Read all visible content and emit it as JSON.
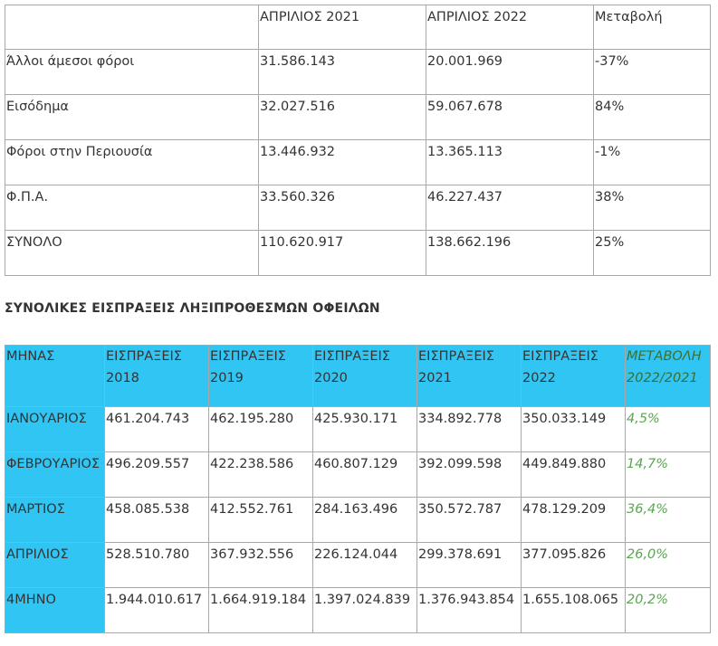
{
  "table1": {
    "headers": [
      "",
      "ΑΠΡΙΛΙΟΣ 2021",
      "ΑΠΡΙΛΙΟΣ 2022",
      "Μεταβολή"
    ],
    "rows": [
      [
        "Άλλοι άμεσοι φόροι",
        "31.586.143",
        "20.001.969",
        "-37%"
      ],
      [
        "Εισόδημα",
        "32.027.516",
        "59.067.678",
        "84%"
      ],
      [
        "Φόροι στην Περιουσία",
        "13.446.932",
        "13.365.113",
        "-1%"
      ],
      [
        "Φ.Π.Α.",
        "33.560.326",
        "46.227.437",
        "38%"
      ],
      [
        "ΣΥΝΟΛΟ",
        "110.620.917",
        "138.662.196",
        "25%"
      ]
    ]
  },
  "heading": "ΣΥΝΟΛΙΚΕΣ ΕΙΣΠΡΑΞΕΙΣ ΛΗΞΙΠΡΟΘΕΣΜΩΝ ΟΦΕΙΛΩΝ",
  "table2": {
    "headers": [
      {
        "line1": "ΜΗΝΑΣ",
        "line2": ""
      },
      {
        "line1": "ΕΙΣΠΡΑΞΕΙΣ",
        "line2": "2018"
      },
      {
        "line1": "ΕΙΣΠΡΑΞΕΙΣ",
        "line2": "2019"
      },
      {
        "line1": "ΕΙΣΠΡΑΞΕΙΣ",
        "line2": "2020"
      },
      {
        "line1": "ΕΙΣΠΡΑΞΕΙΣ",
        "line2": "2021"
      },
      {
        "line1": "ΕΙΣΠΡΑΞΕΙΣ",
        "line2": "2022"
      },
      {
        "line1": "ΜΕΤΑΒΟΛΗ",
        "line2": "2022/2021"
      }
    ],
    "rows": [
      [
        "ΙΑΝΟΥΑΡΙΟΣ",
        "461.204.743",
        "462.195.280",
        "425.930.171",
        "334.892.778",
        "350.033.149",
        "4,5%"
      ],
      [
        "ΦΕΒΡΟΥΑΡΙΟΣ",
        "496.209.557",
        "422.238.586",
        "460.807.129",
        "392.099.598",
        "449.849.880",
        "14,7%"
      ],
      [
        "ΜΑΡΤΙΟΣ",
        "458.085.538",
        "412.552.761",
        "284.163.496",
        "350.572.787",
        "478.129.209",
        "36,4%"
      ],
      [
        "ΑΠΡΙΛΙΟΣ",
        "528.510.780",
        "367.932.556",
        "226.124.044",
        "299.378.691",
        "377.095.826",
        "26,0%"
      ],
      [
        "4ΜΗΝΟ",
        "1.944.010.617",
        "1.664.919.184",
        "1.397.024.839",
        "1.376.943.854",
        "1.655.108.065",
        "20,2%"
      ]
    ]
  },
  "colors": {
    "month_header_bg": "#31c5f4",
    "change_text": "#5aa550",
    "border": "#a8a8a8",
    "text": "#333333"
  }
}
